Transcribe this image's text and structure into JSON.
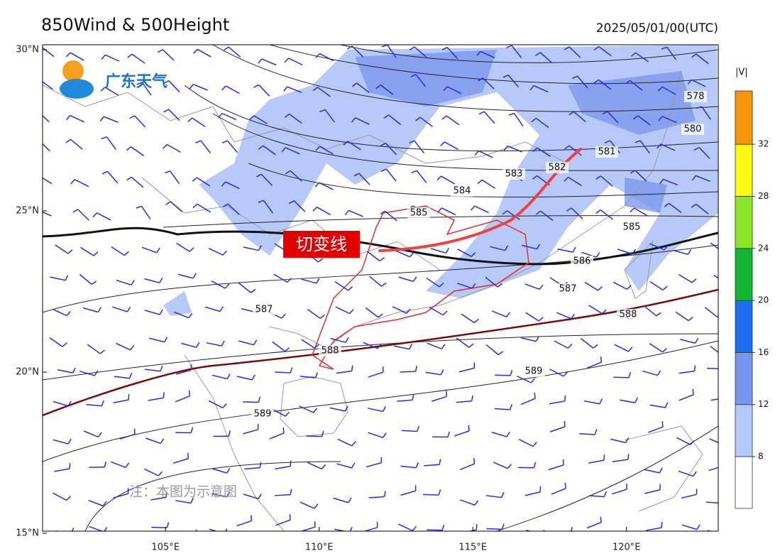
{
  "map": {
    "title": "850Wind & 500Height",
    "time": "2025/05/01/00(UTC)",
    "logo": "广东天气",
    "annotation": "切变线",
    "note": "注：本图为示意图",
    "lon_ticks": [
      {
        "value": 105,
        "label": "105°E"
      },
      {
        "value": 110,
        "label": "110°E"
      },
      {
        "value": 115,
        "label": "115°E"
      },
      {
        "value": 120,
        "label": "120°E"
      }
    ],
    "lat_ticks": [
      {
        "value": 30,
        "label": "30°N"
      },
      {
        "value": 25,
        "label": "25°N"
      },
      {
        "value": 20,
        "label": "20°N"
      },
      {
        "value": 15,
        "label": "15°N"
      }
    ],
    "contour_labels": [
      "578",
      "580",
      "581",
      "582",
      "583",
      "584",
      "585",
      "585",
      "586",
      "587",
      "587",
      "588",
      "588",
      "589",
      "589"
    ],
    "colorbar": {
      "title": "|V|",
      "ticks": [
        8,
        12,
        16,
        20,
        24,
        28,
        32
      ],
      "colors": [
        "#ffffff",
        "#b4c8fa",
        "#7896f0",
        "#1e6ef0",
        "#12b432",
        "#8ce628",
        "#fafa14",
        "#f5960a"
      ]
    }
  }
}
